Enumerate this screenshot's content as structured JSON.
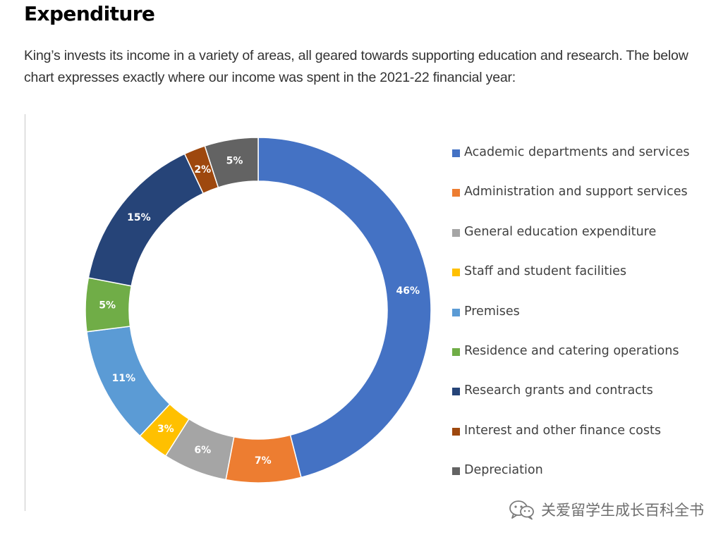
{
  "page": {
    "title": "Expenditure",
    "intro": "King’s invests its income in a variety of areas, all geared towards supporting education and research. The below chart expresses exactly where our income was spent in the 2021-22 financial year:",
    "watermark_text": "关爱留学生成长百科全书",
    "watermark_icon": "wechat-icon"
  },
  "chart_data": {
    "type": "pie",
    "variant": "doughnut",
    "legend_position": "right",
    "categories": [
      "Academic departments and services",
      "Administration and support services",
      "General education expenditure",
      "Staff and student facilities",
      "Premises",
      "Residence and catering operations",
      "Research grants and contracts",
      "Interest and other finance costs",
      "Depreciation"
    ],
    "values": [
      46,
      7,
      6,
      3,
      11,
      5,
      15,
      2,
      5
    ],
    "data_labels": [
      "46%",
      "7%",
      "6%",
      "3%",
      "11%",
      "5%",
      "15%",
      "2%",
      "5%"
    ],
    "colors": [
      "#4472C4",
      "#ED7D31",
      "#A5A5A5",
      "#FFC000",
      "#5B9BD5",
      "#70AD47",
      "#264478",
      "#9E480E",
      "#636363"
    ],
    "label_color": "#FFFFFF"
  }
}
